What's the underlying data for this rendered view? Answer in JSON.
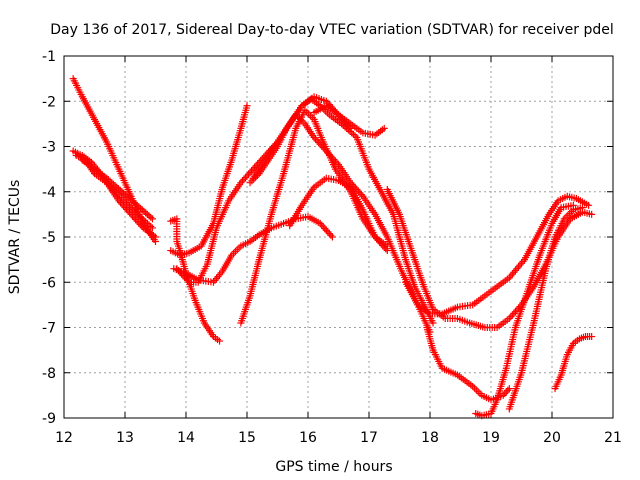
{
  "chart_data": {
    "type": "scatter",
    "title": "Day 136 of 2017, Sidereal Day-to-day VTEC variation (SDTVAR) for receiver pdel",
    "xlabel": "GPS time / hours",
    "ylabel": "SDTVAR / TECUs",
    "xlim": [
      12,
      21
    ],
    "ylim": [
      -9,
      -1
    ],
    "xticks": [
      "12",
      "13",
      "14",
      "15",
      "16",
      "17",
      "18",
      "19",
      "20",
      "21"
    ],
    "yticks": [
      "-9",
      "-8",
      "-7",
      "-6",
      "-5",
      "-4",
      "-3",
      "-2",
      "-1"
    ],
    "grid": true,
    "marker": "+",
    "color": "#ff0000",
    "series": [
      {
        "name": "s1",
        "x": [
          12.15,
          12.3,
          12.5,
          12.7,
          12.9,
          13.1,
          13.3,
          13.5
        ],
        "y": [
          -1.5,
          -1.9,
          -2.4,
          -2.9,
          -3.5,
          -4.1,
          -4.7,
          -5.1
        ]
      },
      {
        "name": "s2",
        "x": [
          12.15,
          12.3,
          12.45,
          12.6,
          12.8,
          13.0,
          13.2,
          13.45
        ],
        "y": [
          -3.1,
          -3.2,
          -3.35,
          -3.6,
          -3.95,
          -4.2,
          -4.5,
          -4.8
        ]
      },
      {
        "name": "s3",
        "x": [
          12.2,
          12.35,
          12.5,
          12.7,
          12.9,
          13.1,
          13.3,
          13.5
        ],
        "y": [
          -3.2,
          -3.3,
          -3.6,
          -3.8,
          -4.2,
          -4.5,
          -4.8,
          -5.0
        ]
      },
      {
        "name": "s4",
        "x": [
          12.3,
          12.5,
          12.7,
          12.95,
          13.2,
          13.45
        ],
        "y": [
          -3.3,
          -3.5,
          -3.7,
          -4.0,
          -4.3,
          -4.6
        ]
      },
      {
        "name": "s5",
        "x": [
          13.75,
          13.85,
          13.85,
          13.9,
          14.0,
          14.15,
          14.3,
          14.45,
          14.55
        ],
        "y": [
          -4.65,
          -4.6,
          -5.1,
          -5.3,
          -5.8,
          -6.4,
          -6.9,
          -7.2,
          -7.3
        ]
      },
      {
        "name": "s6",
        "x": [
          13.75,
          13.9,
          14.05,
          14.25,
          14.45,
          14.6,
          14.75,
          14.9,
          15.0
        ],
        "y": [
          -5.3,
          -5.4,
          -5.35,
          -5.2,
          -4.7,
          -3.9,
          -3.3,
          -2.6,
          -2.1
        ]
      },
      {
        "name": "s7",
        "x": [
          13.8,
          14.0,
          14.2,
          14.45,
          14.6,
          14.75,
          14.9,
          15.05,
          15.2,
          15.4,
          15.6,
          15.8,
          16.0,
          16.2,
          16.4
        ],
        "y": [
          -5.7,
          -5.8,
          -5.95,
          -6.0,
          -5.75,
          -5.4,
          -5.2,
          -5.1,
          -4.95,
          -4.8,
          -4.7,
          -4.6,
          -4.55,
          -4.7,
          -5.0
        ]
      },
      {
        "name": "s8",
        "x": [
          13.85,
          14.05,
          14.2,
          14.35,
          14.5,
          14.7,
          14.9,
          15.1,
          15.3,
          15.5,
          15.7,
          15.9,
          16.1,
          16.3,
          16.5,
          16.7
        ],
        "y": [
          -5.7,
          -6.0,
          -6.0,
          -5.6,
          -4.8,
          -4.2,
          -3.8,
          -3.5,
          -3.2,
          -2.9,
          -2.5,
          -2.1,
          -1.9,
          -2.0,
          -2.3,
          -2.6
        ]
      },
      {
        "name": "s9",
        "x": [
          14.9,
          15.05,
          15.2,
          15.4,
          15.6,
          15.8,
          15.95,
          16.1,
          16.25,
          16.45,
          16.7,
          16.9,
          17.1,
          17.3
        ],
        "y": [
          -6.9,
          -6.3,
          -5.5,
          -4.5,
          -3.6,
          -2.6,
          -2.2,
          -2.4,
          -2.9,
          -3.5,
          -4.0,
          -4.6,
          -5.0,
          -5.3
        ]
      },
      {
        "name": "s10",
        "x": [
          15.05,
          15.2,
          15.35,
          15.5,
          15.65,
          15.8,
          15.95,
          16.1,
          16.3,
          16.5,
          16.7,
          16.9,
          17.1,
          17.3,
          17.55,
          17.8,
          18.0
        ],
        "y": [
          -3.8,
          -3.6,
          -3.3,
          -3.0,
          -2.6,
          -2.3,
          -2.5,
          -2.8,
          -3.1,
          -3.4,
          -3.8,
          -4.1,
          -4.5,
          -5.0,
          -5.8,
          -6.5,
          -7.1
        ]
      },
      {
        "name": "s11",
        "x": [
          15.1,
          15.3,
          15.5,
          15.7,
          15.9,
          16.05,
          16.2,
          16.35,
          16.55,
          16.8,
          17.0,
          17.2,
          17.4,
          17.6,
          17.75,
          17.9,
          18.05
        ],
        "y": [
          -3.7,
          -3.3,
          -2.9,
          -2.5,
          -2.1,
          -1.95,
          -2.1,
          -2.3,
          -2.5,
          -2.8,
          -3.5,
          -4.0,
          -4.5,
          -5.5,
          -6.1,
          -6.5,
          -6.9
        ]
      },
      {
        "name": "s12",
        "x": [
          15.7,
          15.9,
          16.1,
          16.3,
          16.5,
          16.7,
          16.9,
          17.1,
          17.3
        ],
        "y": [
          -4.75,
          -4.3,
          -3.9,
          -3.7,
          -3.75,
          -3.9,
          -4.4,
          -5.0,
          -5.2
        ]
      },
      {
        "name": "s13",
        "x": [
          16.1,
          16.3,
          16.5,
          16.7,
          16.9,
          17.1,
          17.25
        ],
        "y": [
          -2.25,
          -2.1,
          -2.3,
          -2.5,
          -2.7,
          -2.75,
          -2.6
        ]
      },
      {
        "name": "s14",
        "x": [
          17.3,
          17.5,
          17.7,
          17.9,
          18.05,
          18.25,
          18.45,
          18.65,
          18.9,
          19.1,
          19.3,
          19.5,
          19.7,
          19.9,
          20.1,
          20.3,
          20.5,
          20.65
        ],
        "y": [
          -3.95,
          -4.5,
          -5.3,
          -6.1,
          -6.6,
          -6.8,
          -6.8,
          -6.9,
          -7.0,
          -7.0,
          -6.8,
          -6.5,
          -6.1,
          -5.6,
          -5.0,
          -4.6,
          -4.45,
          -4.5
        ]
      },
      {
        "name": "s15",
        "x": [
          17.6,
          17.8,
          18.0,
          18.2,
          18.45,
          18.7,
          18.9,
          19.1,
          19.3,
          19.55,
          19.75,
          19.95,
          20.1,
          20.25,
          20.4,
          20.6
        ],
        "y": [
          -6.0,
          -6.5,
          -6.7,
          -6.7,
          -6.55,
          -6.5,
          -6.3,
          -6.1,
          -5.9,
          -5.5,
          -5.0,
          -4.5,
          -4.2,
          -4.1,
          -4.15,
          -4.3
        ]
      },
      {
        "name": "s16",
        "x": [
          17.95,
          18.05,
          18.2,
          18.45,
          18.7,
          18.85,
          19.0,
          19.2,
          19.3
        ],
        "y": [
          -7.0,
          -7.5,
          -7.9,
          -8.05,
          -8.3,
          -8.5,
          -8.6,
          -8.5,
          -8.35
        ]
      },
      {
        "name": "s17",
        "x": [
          18.75,
          18.85,
          19.0,
          19.1,
          19.25,
          19.4,
          19.6,
          19.8,
          20.0,
          20.15,
          20.35
        ],
        "y": [
          -8.9,
          -8.95,
          -8.9,
          -8.6,
          -7.9,
          -7.0,
          -6.2,
          -5.4,
          -4.7,
          -4.35,
          -4.3
        ]
      },
      {
        "name": "s18",
        "x": [
          19.3,
          19.5,
          19.7,
          19.9,
          20.05,
          20.2,
          20.35,
          20.5
        ],
        "y": [
          -8.8,
          -8.0,
          -6.9,
          -5.7,
          -5.0,
          -4.6,
          -4.4,
          -4.35
        ]
      },
      {
        "name": "s19",
        "x": [
          20.05,
          20.15,
          20.25,
          20.35,
          20.45,
          20.55,
          20.65
        ],
        "y": [
          -8.35,
          -8.05,
          -7.6,
          -7.35,
          -7.25,
          -7.2,
          -7.2
        ]
      }
    ]
  }
}
